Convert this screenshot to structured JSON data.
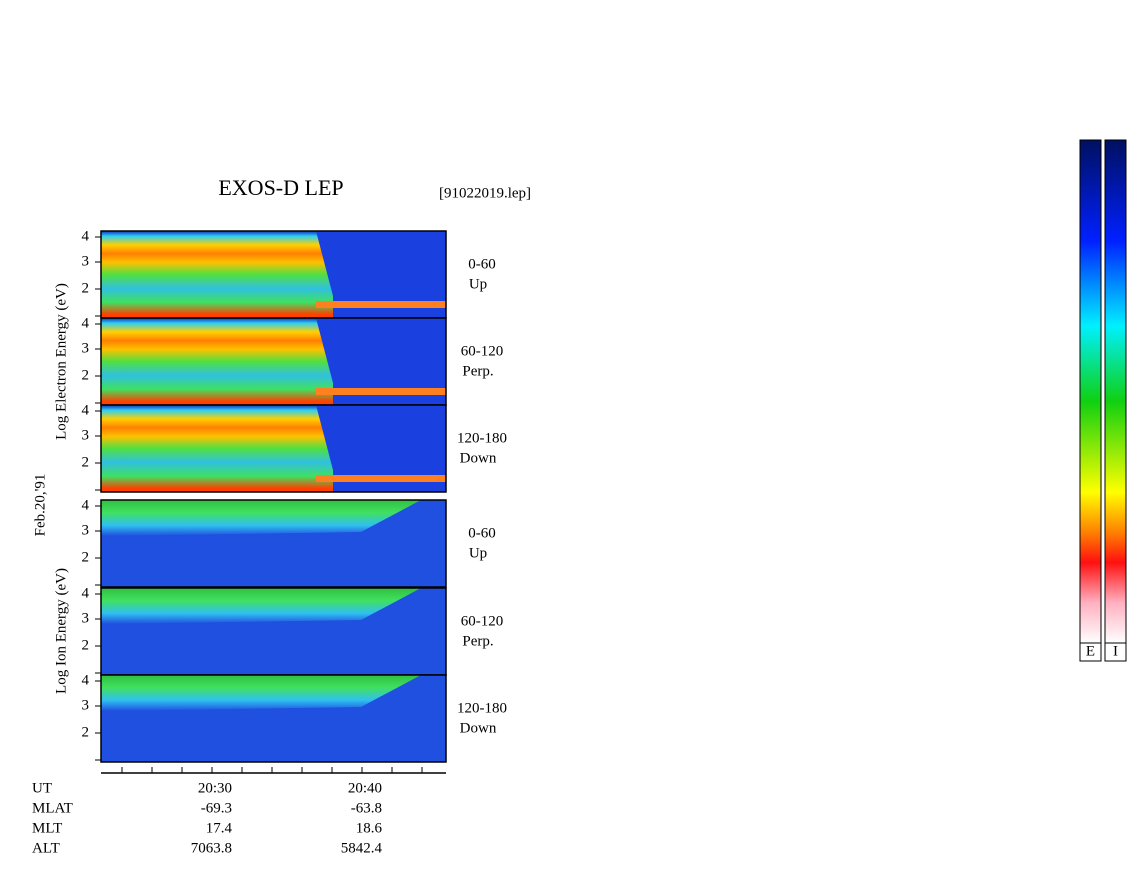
{
  "title": "EXOS-D LEP",
  "file": "[91022019.lep]",
  "date": "Feb.20,'91",
  "groups": [
    {
      "axis_label": "Log   Electron   Energy (eV)",
      "panels": [
        {
          "pitch": "0-60",
          "direction": "Up"
        },
        {
          "pitch": "60-120",
          "direction": "Perp."
        },
        {
          "pitch": "120-180",
          "direction": "Down"
        }
      ]
    },
    {
      "axis_label": "Log   Ion   Energy (eV)",
      "panels": [
        {
          "pitch": "0-60",
          "direction": "Up"
        },
        {
          "pitch": "60-120",
          "direction": "Perp."
        },
        {
          "pitch": "120-180",
          "direction": "Down"
        }
      ]
    }
  ],
  "energy_ticks": [
    "4",
    "3",
    "2"
  ],
  "ephemeris": [
    [
      "UT",
      "20:30",
      "20:40"
    ],
    [
      "MLAT",
      "-69.3",
      "-63.8"
    ],
    [
      "MLT",
      "17.4",
      "18.6"
    ],
    [
      "ALT",
      "7063.8",
      "5842.4"
    ]
  ],
  "colorbars": [
    "E",
    "I"
  ]
}
